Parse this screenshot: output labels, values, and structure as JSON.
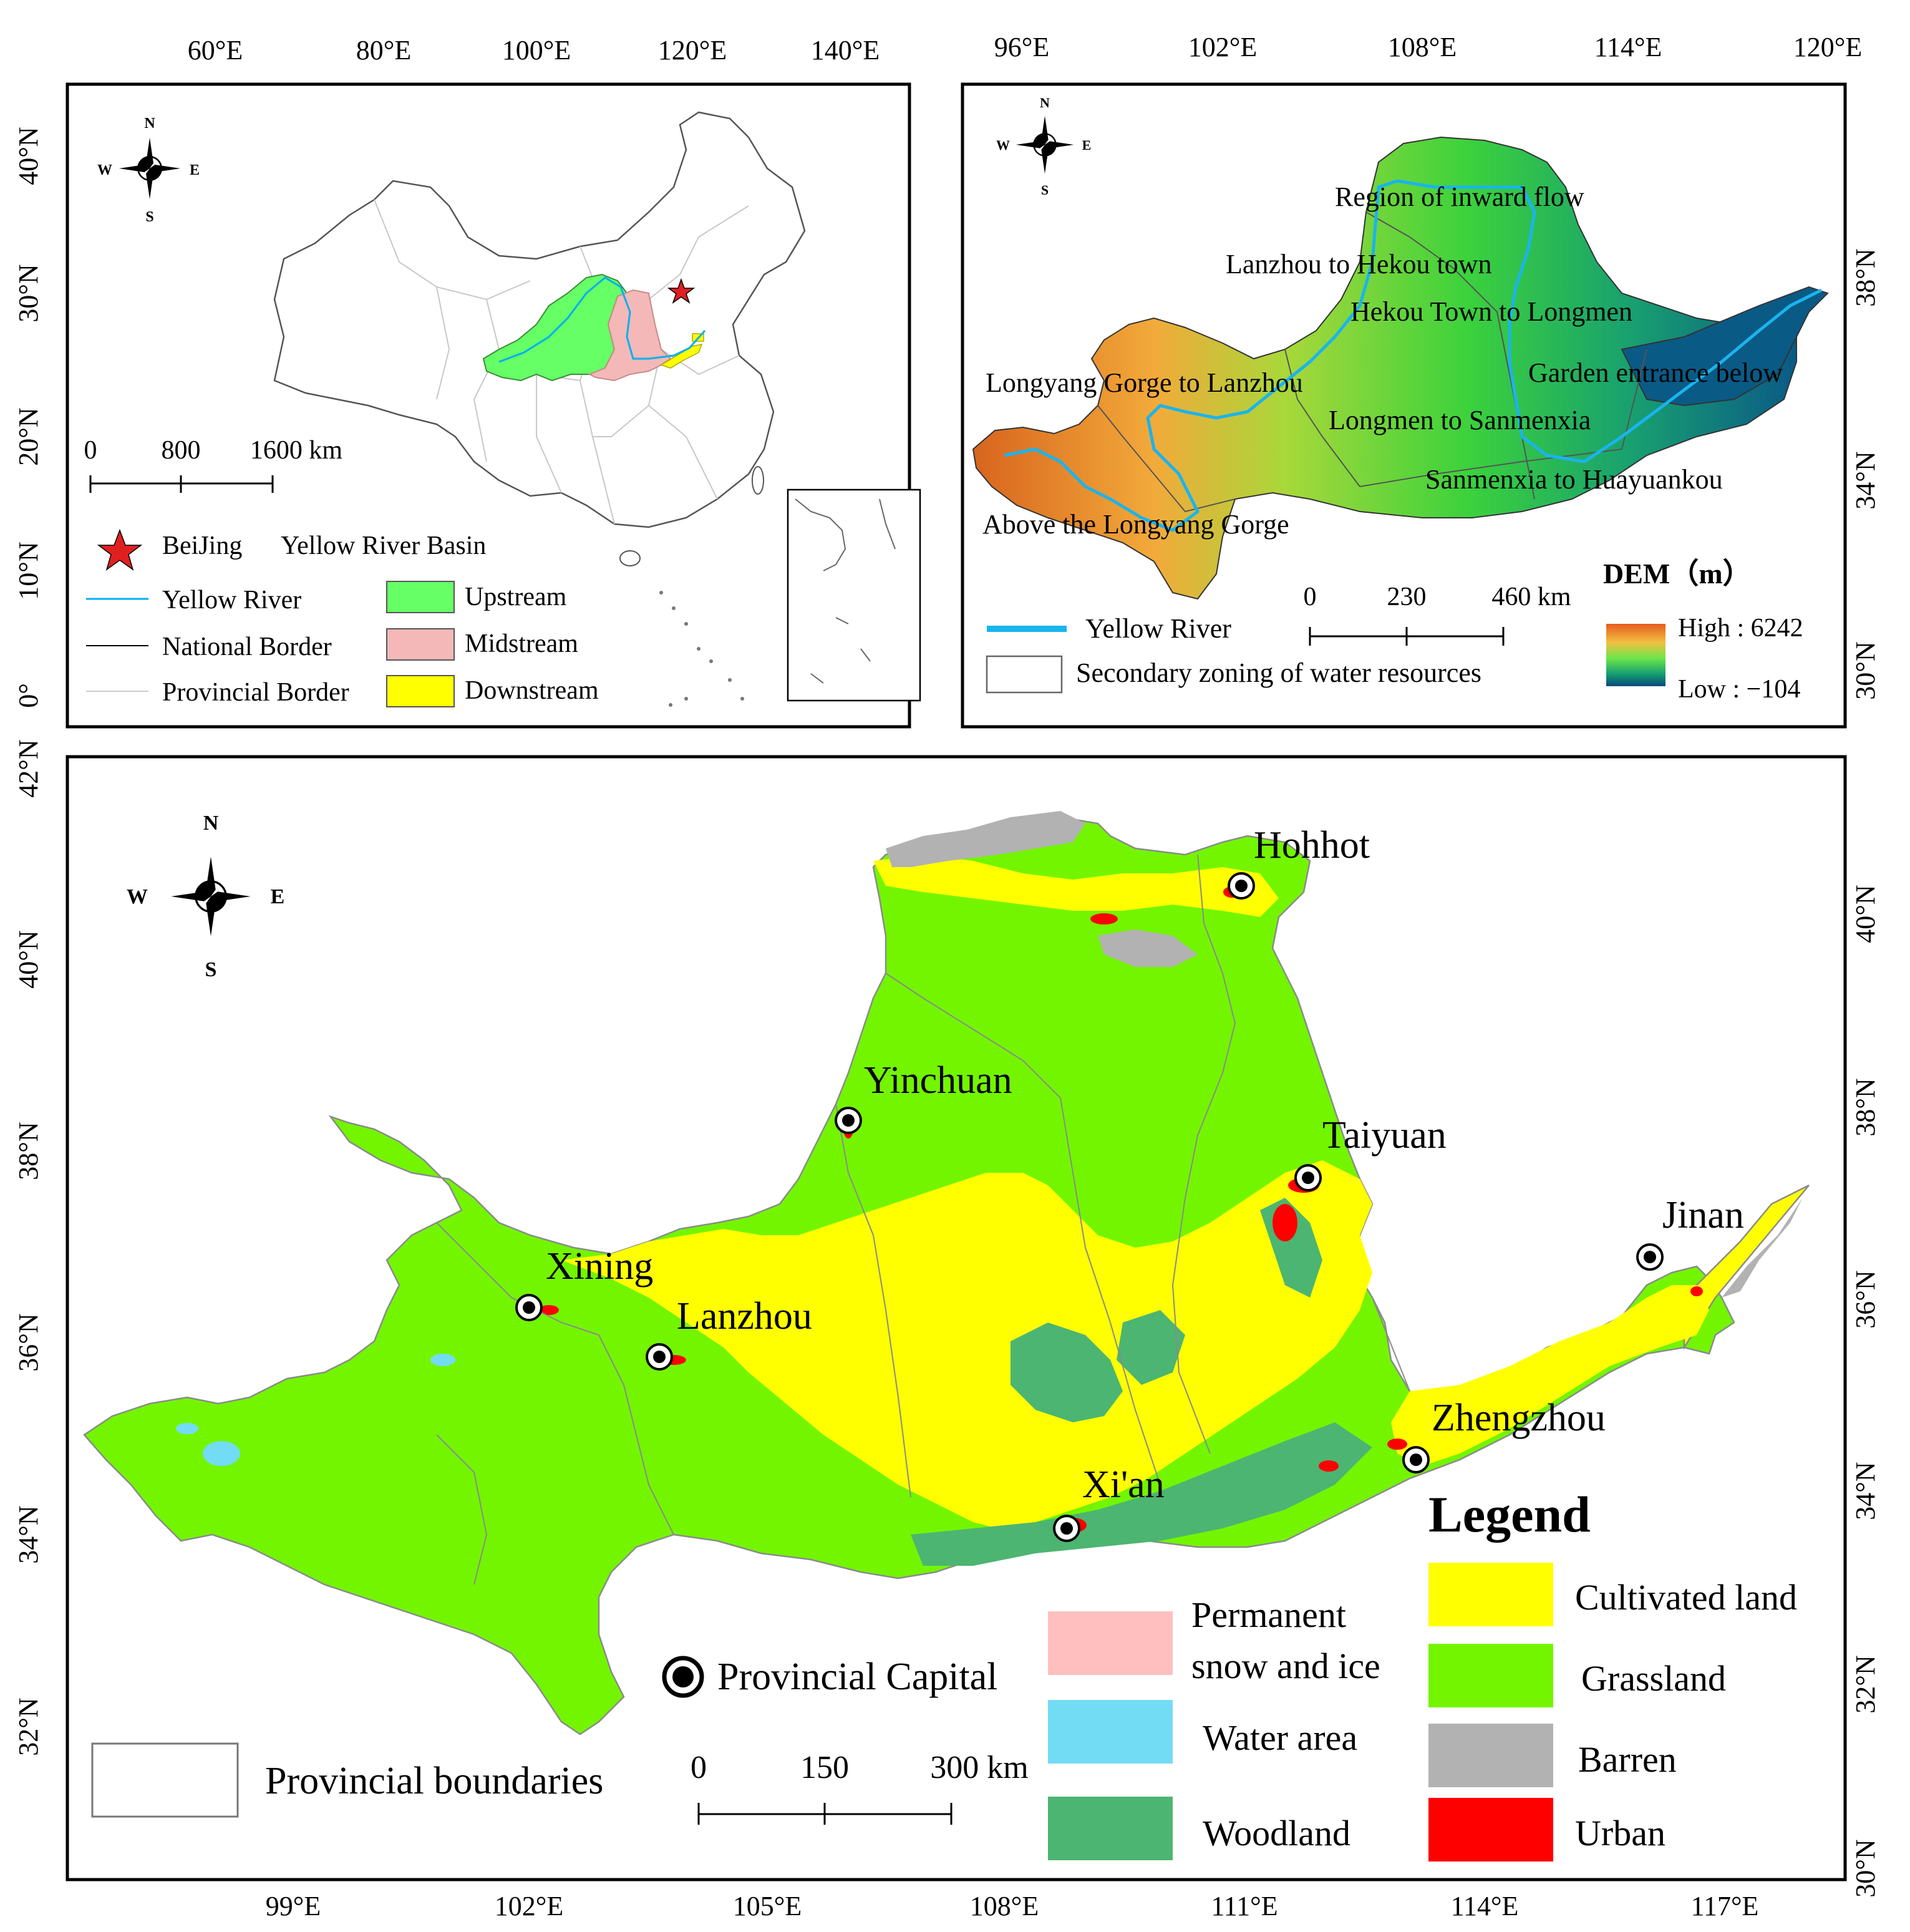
{
  "panel_a": {
    "top_ticks": [
      "60°E",
      "80°E",
      "100°E",
      "120°E",
      "140°E"
    ],
    "left_ticks": [
      "40°N",
      "30°N",
      "20°N",
      "10°N",
      "0°"
    ],
    "compass": {
      "n": "N",
      "s": "S",
      "e": "E",
      "w": "W"
    },
    "scale": {
      "l0": "0",
      "l1": "800",
      "l2": "1600 km"
    },
    "legend": {
      "beijing": "BeiJing",
      "basin": "Yellow River Basin",
      "river": "Yellow River",
      "national": "National Border",
      "provincial": "Provincial Border",
      "upstream": "Upstream",
      "midstream": "Midstream",
      "downstream": "Downstream"
    },
    "colors": {
      "upstream": "#66ff66",
      "midstream": "#f4b8b8",
      "downstream": "#ffff00",
      "river": "#00b0f0",
      "star": "#e02020"
    }
  },
  "panel_b": {
    "top_ticks": [
      "96°E",
      "102°E",
      "108°E",
      "114°E",
      "120°E"
    ],
    "right_ticks": [
      "38°N",
      "34°N",
      "30°N"
    ],
    "compass": {
      "n": "N",
      "s": "S",
      "e": "E",
      "w": "W"
    },
    "regions": [
      "Region of inward flow",
      "Lanzhou to Hekou town",
      "Hekou Town to Longmen",
      "Longyang Gorge to Lanzhou",
      "Garden entrance below",
      "Longmen to Sanmenxia",
      "Sanmenxia to Huayuankou",
      "Above the Longyang Gorge"
    ],
    "scale": {
      "l0": "0",
      "l1": "230",
      "l2": "460 km"
    },
    "dem_title": "DEM（m）",
    "dem_high": "High : 6242",
    "dem_low": "Low : −104",
    "legend_river": "Yellow River",
    "legend_zone": "Secondary zoning of water resources"
  },
  "panel_c": {
    "left_ticks": [
      "42°N",
      "40°N",
      "38°N",
      "36°N",
      "34°N",
      "32°N"
    ],
    "right_ticks": [
      "40°N",
      "38°N",
      "36°N",
      "34°N",
      "32°N",
      "30°N"
    ],
    "bottom_ticks": [
      "99°E",
      "102°E",
      "105°E",
      "108°E",
      "111°E",
      "114°E",
      "117°E"
    ],
    "compass": {
      "n": "N",
      "s": "S",
      "e": "E",
      "w": "W"
    },
    "cities": [
      "Hohhot",
      "Yinchuan",
      "Taiyuan",
      "Jinan",
      "Xining",
      "Lanzhou",
      "Zhengzhou",
      "Xi'an"
    ],
    "capital_label": "Provincial Capital",
    "boundaries_label": "Provincial boundaries",
    "scale": {
      "l0": "0",
      "l1": "150",
      "l2": "300 km"
    },
    "legend_title": "Legend",
    "landcover": {
      "snow_a": "Permanent",
      "snow_b": "snow and ice",
      "water": "Water area",
      "woodland": "Woodland",
      "cultivated": "Cultivated land",
      "grassland": "Grassland",
      "barren": "Barren",
      "urban": "Urban"
    },
    "colors": {
      "snow": "#ffbfbf",
      "water": "#73dcf5",
      "woodland": "#4cb572",
      "cultivated": "#ffff00",
      "grassland": "#73f500",
      "barren": "#b2b2b2",
      "urban": "#ff0000"
    }
  }
}
